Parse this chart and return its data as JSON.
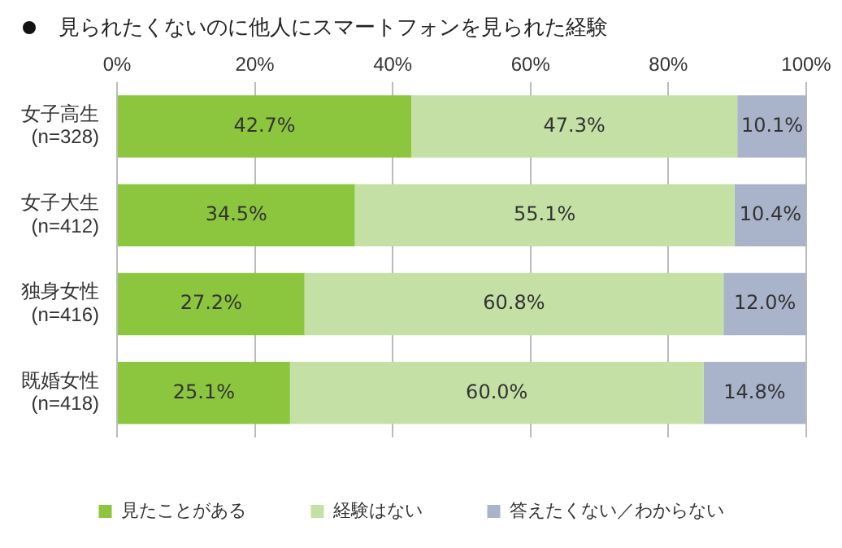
{
  "chart_data": {
    "type": "bar",
    "orientation": "horizontal",
    "stacked": true,
    "title": "見られたくないのに他人にスマートフォンを見られた経験",
    "categories": [
      "女子高生\n(n=328)",
      "女子大生\n(n=412)",
      "独身女性\n(n=416)",
      "既婚女性\n(n=418)"
    ],
    "series": [
      {
        "name": "見たことがある",
        "color": "#8cc63e",
        "values": [
          42.7,
          34.5,
          27.2,
          25.1
        ],
        "value_labels": [
          "42.7%",
          "34.5%",
          "27.2%",
          "25.1%"
        ]
      },
      {
        "name": "経験はない",
        "color": "#c4e0a4",
        "values": [
          47.3,
          55.1,
          60.8,
          60.0
        ],
        "value_labels": [
          "47.3%",
          "55.1%",
          "60.8%",
          "60.0%"
        ]
      },
      {
        "name": "答えたくない／わからない",
        "color": "#a9b3c9",
        "values": [
          10.1,
          10.4,
          12.0,
          14.8
        ],
        "value_labels": [
          "10.1%",
          "10.4%",
          "12.0%",
          "14.8%"
        ]
      }
    ],
    "xlim": [
      0,
      100
    ],
    "xticks": [
      {
        "value": 0,
        "label": "0%"
      },
      {
        "value": 20,
        "label": "20%"
      },
      {
        "value": 40,
        "label": "40%"
      },
      {
        "value": 60,
        "label": "60%"
      },
      {
        "value": 80,
        "label": "80%"
      },
      {
        "value": 100,
        "label": "100%"
      }
    ],
    "grid": "x",
    "legend": "bottom"
  }
}
